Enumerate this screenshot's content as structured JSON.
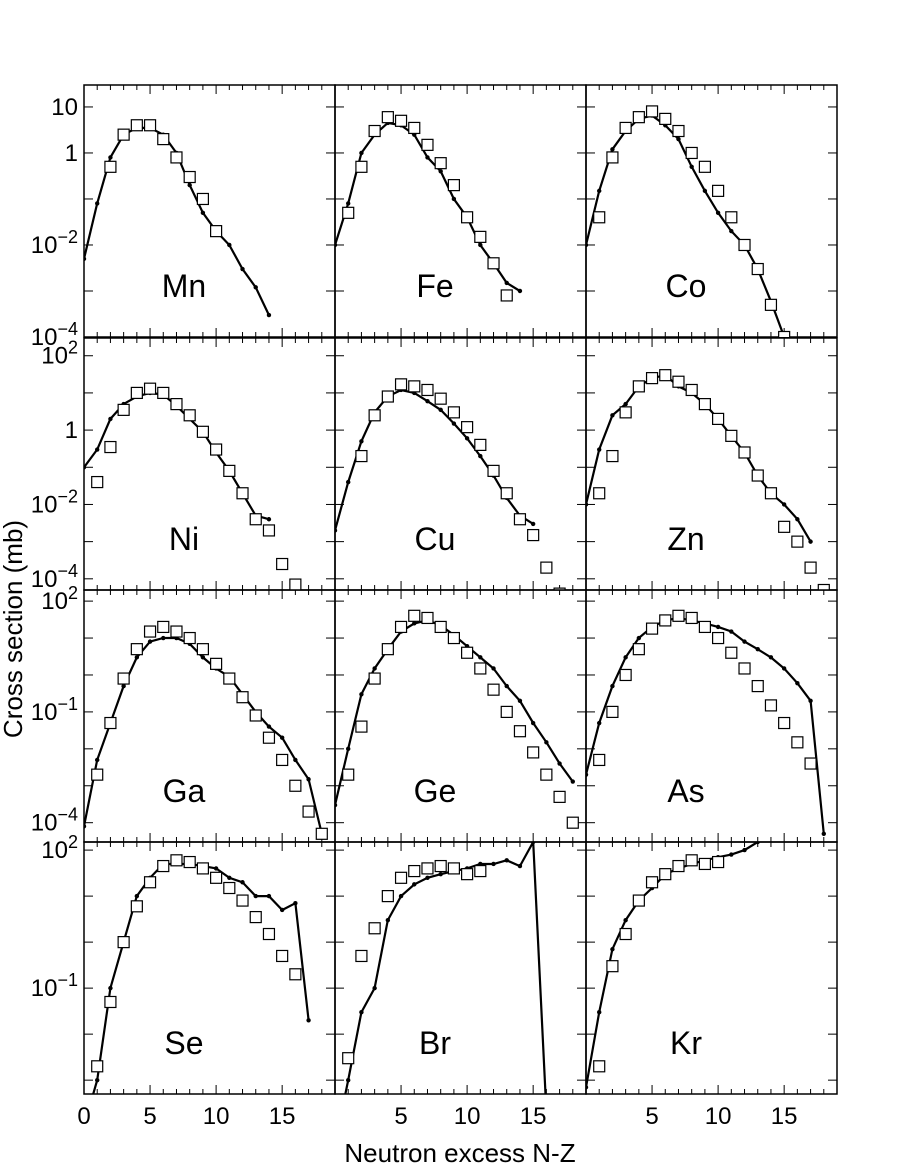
{
  "figure": {
    "xlabel": "Neutron excess N-Z",
    "ylabel": "Cross section (mb)"
  },
  "chart_data": {
    "type": "scatter",
    "yscale": "log",
    "xlim": [
      0,
      19
    ],
    "xticks": [
      0,
      5,
      10,
      15
    ],
    "xtick_labels": [
      "0",
      "5",
      "10",
      "15"
    ],
    "grid": false,
    "legend": "none",
    "rows": [
      {
        "ylim": [
          0.0001,
          30
        ],
        "ytick_labels": [
          {
            "v": 10,
            "t": "10"
          },
          {
            "v": 1,
            "t": "1"
          },
          {
            "v": 0.01,
            "t": "10-2"
          },
          {
            "v": 0.0001,
            "t": "10-4"
          }
        ]
      },
      {
        "ylim": [
          5e-05,
          300
        ],
        "ytick_labels": [
          {
            "v": 100,
            "t": "102"
          },
          {
            "v": 1,
            "t": "1"
          },
          {
            "v": 0.01,
            "t": "10-2"
          },
          {
            "v": 0.0001,
            "t": "10-4"
          }
        ]
      },
      {
        "ylim": [
          3e-05,
          200
        ],
        "ytick_labels": [
          {
            "v": 100,
            "t": "102"
          },
          {
            "v": 0.1,
            "t": "10-1"
          },
          {
            "v": 0.0001,
            "t": "10-4"
          }
        ]
      },
      {
        "ylim": [
          0.0005,
          150
        ],
        "ytick_labels": [
          {
            "v": 100,
            "t": "102"
          },
          {
            "v": 0.1,
            "t": "10-1"
          }
        ]
      }
    ],
    "panels": [
      {
        "label": "Mn",
        "line": {
          "x": [
            0,
            1,
            2,
            3,
            4,
            5,
            6,
            7,
            8,
            9,
            10,
            11,
            12,
            13,
            14
          ],
          "y": [
            0.005,
            0.08,
            0.8,
            2.5,
            3.5,
            3.5,
            2.5,
            1.0,
            0.2,
            0.05,
            0.02,
            0.01,
            0.003,
            0.0012,
            0.0003
          ]
        },
        "markers": {
          "x": [
            2,
            3,
            4,
            5,
            6,
            7,
            8,
            9,
            10
          ],
          "y": [
            0.5,
            2.5,
            4.0,
            4.0,
            2.0,
            0.8,
            0.3,
            0.1,
            0.02
          ]
        }
      },
      {
        "label": "Fe",
        "line": {
          "x": [
            0,
            1,
            2,
            3,
            4,
            5,
            6,
            7,
            8,
            9,
            10,
            11,
            12,
            13,
            14
          ],
          "y": [
            0.01,
            0.08,
            1.0,
            2.5,
            4.5,
            4.0,
            2.5,
            0.8,
            0.4,
            0.1,
            0.04,
            0.01,
            0.004,
            0.0015,
            0.001
          ]
        },
        "markers": {
          "x": [
            1,
            2,
            3,
            4,
            5,
            6,
            7,
            8,
            9,
            10,
            11,
            12,
            13
          ],
          "y": [
            0.05,
            0.5,
            3.0,
            6.0,
            5.0,
            3.5,
            1.5,
            0.6,
            0.2,
            0.04,
            0.015,
            0.004,
            0.0008
          ]
        }
      },
      {
        "label": "Co",
        "line": {
          "x": [
            0,
            1,
            2,
            3,
            4,
            5,
            6,
            7,
            8,
            9,
            10,
            11,
            12,
            13,
            14,
            15
          ],
          "y": [
            0.01,
            0.15,
            1.2,
            3.0,
            5.5,
            6.5,
            4.0,
            2.0,
            0.5,
            0.15,
            0.05,
            0.02,
            0.01,
            0.003,
            0.0006,
            0.0001
          ]
        },
        "markers": {
          "x": [
            1,
            2,
            3,
            4,
            5,
            6,
            7,
            8,
            9,
            10,
            11,
            12,
            13,
            14,
            15
          ],
          "y": [
            0.04,
            0.8,
            3.5,
            6.0,
            8.0,
            5.5,
            3.0,
            1.0,
            0.5,
            0.15,
            0.04,
            0.01,
            0.003,
            0.0005,
            0.0001
          ]
        }
      },
      {
        "label": "Ni",
        "line": {
          "x": [
            0,
            1,
            2,
            3,
            4,
            5,
            6,
            7,
            8,
            9,
            10,
            11,
            12,
            13,
            14
          ],
          "y": [
            0.1,
            0.3,
            2.0,
            5.0,
            8.0,
            10.0,
            9.0,
            4.5,
            2.0,
            0.9,
            0.25,
            0.08,
            0.02,
            0.005,
            0.004
          ]
        },
        "markers": {
          "x": [
            1,
            2,
            3,
            4,
            5,
            6,
            7,
            8,
            9,
            10,
            11,
            12,
            13,
            14,
            15,
            16
          ],
          "y": [
            0.04,
            0.35,
            3.5,
            10.0,
            13.0,
            10.0,
            5.0,
            2.5,
            0.9,
            0.3,
            0.08,
            0.02,
            0.004,
            0.002,
            0.00025,
            7e-05
          ]
        }
      },
      {
        "label": "Cu",
        "line": {
          "x": [
            0,
            1,
            2,
            3,
            4,
            5,
            6,
            7,
            8,
            9,
            10,
            11,
            12,
            13,
            14,
            15
          ],
          "y": [
            0.002,
            0.04,
            0.5,
            3.0,
            8.0,
            12.0,
            10.0,
            6.0,
            3.5,
            1.5,
            0.6,
            0.2,
            0.06,
            0.015,
            0.005,
            0.003
          ]
        },
        "markers": {
          "x": [
            2,
            3,
            4,
            5,
            6,
            7,
            8,
            9,
            10,
            11,
            12,
            13,
            14,
            15,
            16,
            17
          ],
          "y": [
            0.2,
            2.5,
            8.0,
            17.0,
            15.0,
            12.0,
            7.0,
            3.0,
            1.2,
            0.4,
            0.08,
            0.02,
            0.004,
            0.0015,
            0.0002,
            4e-05
          ]
        }
      },
      {
        "label": "Zn",
        "line": {
          "x": [
            0,
            1,
            2,
            3,
            4,
            5,
            6,
            7,
            8,
            9,
            10,
            11,
            12,
            13,
            14,
            15,
            16,
            17
          ],
          "y": [
            0.01,
            0.3,
            2.5,
            5.0,
            15.0,
            25.0,
            30.0,
            15.0,
            10.0,
            5.0,
            2.0,
            0.7,
            0.25,
            0.06,
            0.02,
            0.01,
            0.004,
            0.001
          ]
        },
        "markers": {
          "x": [
            1,
            2,
            3,
            4,
            5,
            6,
            7,
            8,
            9,
            10,
            11,
            12,
            13,
            14,
            15,
            16,
            17,
            18
          ],
          "y": [
            0.02,
            0.2,
            3.0,
            15.0,
            25.0,
            30.0,
            20.0,
            12.0,
            5.0,
            2.0,
            0.7,
            0.25,
            0.06,
            0.02,
            0.0025,
            0.001,
            0.0002,
            5e-05
          ]
        }
      },
      {
        "label": "Ga",
        "line": {
          "x": [
            0,
            1,
            2,
            3,
            4,
            5,
            6,
            7,
            8,
            9,
            10,
            11,
            12,
            13,
            14,
            15,
            16,
            17,
            18
          ],
          "y": [
            8e-05,
            0.005,
            0.05,
            0.5,
            3.0,
            8.0,
            10.0,
            10.0,
            7.0,
            3.0,
            1.5,
            0.9,
            0.3,
            0.1,
            0.04,
            0.02,
            0.005,
            0.0015,
            5e-05
          ]
        },
        "markers": {
          "x": [
            1,
            2,
            3,
            4,
            5,
            6,
            7,
            8,
            9,
            10,
            11,
            12,
            13,
            14,
            15,
            16,
            17,
            18,
            19
          ],
          "y": [
            0.002,
            0.05,
            0.8,
            5.0,
            15.0,
            20.0,
            15.0,
            10.0,
            5.0,
            2.0,
            0.8,
            0.25,
            0.08,
            0.02,
            0.005,
            0.001,
            0.0002,
            5e-05,
            1.5e-05
          ]
        }
      },
      {
        "label": "Ge",
        "line": {
          "x": [
            0,
            1,
            2,
            3,
            4,
            5,
            6,
            7,
            8,
            9,
            10,
            11,
            12,
            13,
            14,
            15,
            16,
            17,
            18
          ],
          "y": [
            0.0003,
            0.01,
            0.3,
            1.5,
            5.0,
            15.0,
            25.0,
            30.0,
            22.0,
            12.0,
            6.0,
            3.0,
            1.5,
            0.5,
            0.2,
            0.05,
            0.015,
            0.004,
            0.0013
          ]
        },
        "markers": {
          "x": [
            1,
            2,
            3,
            4,
            5,
            6,
            7,
            8,
            9,
            10,
            11,
            12,
            13,
            14,
            15,
            16,
            17,
            18
          ],
          "y": [
            0.002,
            0.04,
            0.8,
            5.0,
            20.0,
            40.0,
            35.0,
            20.0,
            10.0,
            4.0,
            1.5,
            0.4,
            0.1,
            0.03,
            0.008,
            0.002,
            0.0005,
            0.0001
          ]
        }
      },
      {
        "label": "As",
        "line": {
          "x": [
            0,
            1,
            2,
            3,
            4,
            5,
            6,
            7,
            8,
            9,
            10,
            11,
            12,
            13,
            14,
            15,
            16,
            17,
            18
          ],
          "y": [
            0.002,
            0.05,
            0.5,
            3.0,
            10.0,
            20.0,
            30.0,
            35.0,
            30.0,
            25.0,
            20.0,
            15.0,
            8.0,
            5.0,
            3.0,
            1.5,
            0.6,
            0.2,
            5e-05
          ]
        },
        "markers": {
          "x": [
            1,
            2,
            3,
            4,
            5,
            6,
            7,
            8,
            9,
            10,
            11,
            12,
            13,
            14,
            15,
            16,
            17
          ],
          "y": [
            0.005,
            0.1,
            1.0,
            5.0,
            18.0,
            30.0,
            40.0,
            35.0,
            20.0,
            10.0,
            4.0,
            1.5,
            0.5,
            0.15,
            0.05,
            0.015,
            0.004
          ]
        }
      },
      {
        "label": "Se",
        "line": {
          "x": [
            0,
            1,
            2,
            3,
            4,
            5,
            6,
            7,
            8,
            9,
            10,
            11,
            12,
            13,
            14,
            15,
            16,
            17
          ],
          "y": [
            0.0001,
            0.001,
            0.1,
            1.0,
            10.0,
            25.0,
            50.0,
            50.0,
            50.0,
            45.0,
            40.0,
            25.0,
            20.0,
            10.0,
            10.0,
            5.0,
            7.0,
            0.02
          ]
        },
        "markers": {
          "x": [
            1,
            2,
            3,
            4,
            5,
            6,
            7,
            8,
            9,
            10,
            11,
            12,
            13,
            14,
            15,
            16
          ],
          "y": [
            0.002,
            0.05,
            1.0,
            6.0,
            20.0,
            45.0,
            60.0,
            55.0,
            40.0,
            25.0,
            15.0,
            8.0,
            3.5,
            1.5,
            0.5,
            0.2
          ]
        }
      },
      {
        "label": "Br",
        "line": {
          "x": [
            0,
            1,
            2,
            3,
            4,
            5,
            6,
            7,
            8,
            9,
            10,
            11,
            12,
            13,
            14,
            15,
            16
          ],
          "y": [
            4e-05,
            0.001,
            0.03,
            0.1,
            3.0,
            10.0,
            18.0,
            25.0,
            30.0,
            35.0,
            40.0,
            50.0,
            50.0,
            60.0,
            45.0,
            150.0,
            0.0002
          ]
        },
        "markers": {
          "x": [
            1,
            2,
            3,
            4,
            5,
            6,
            7,
            8,
            9,
            10,
            11
          ],
          "y": [
            0.003,
            0.5,
            2.0,
            10.0,
            25.0,
            35.0,
            40.0,
            45.0,
            40.0,
            30.0,
            35.0
          ]
        }
      },
      {
        "label": "Kr",
        "line": {
          "x": [
            0,
            1,
            2,
            3,
            4,
            5,
            6,
            7,
            8,
            9,
            10,
            11,
            12,
            13
          ],
          "y": [
            0.0007,
            0.03,
            0.7,
            3.0,
            8.0,
            15.0,
            30.0,
            40.0,
            50.0,
            60.0,
            70.0,
            80.0,
            100.0,
            150.0
          ]
        },
        "markers": {
          "x": [
            1,
            2,
            3,
            4,
            5,
            6,
            7,
            8,
            9,
            10
          ],
          "y": [
            0.002,
            0.3,
            1.5,
            8.0,
            20.0,
            30.0,
            45.0,
            60.0,
            50.0,
            55.0
          ]
        }
      }
    ]
  }
}
